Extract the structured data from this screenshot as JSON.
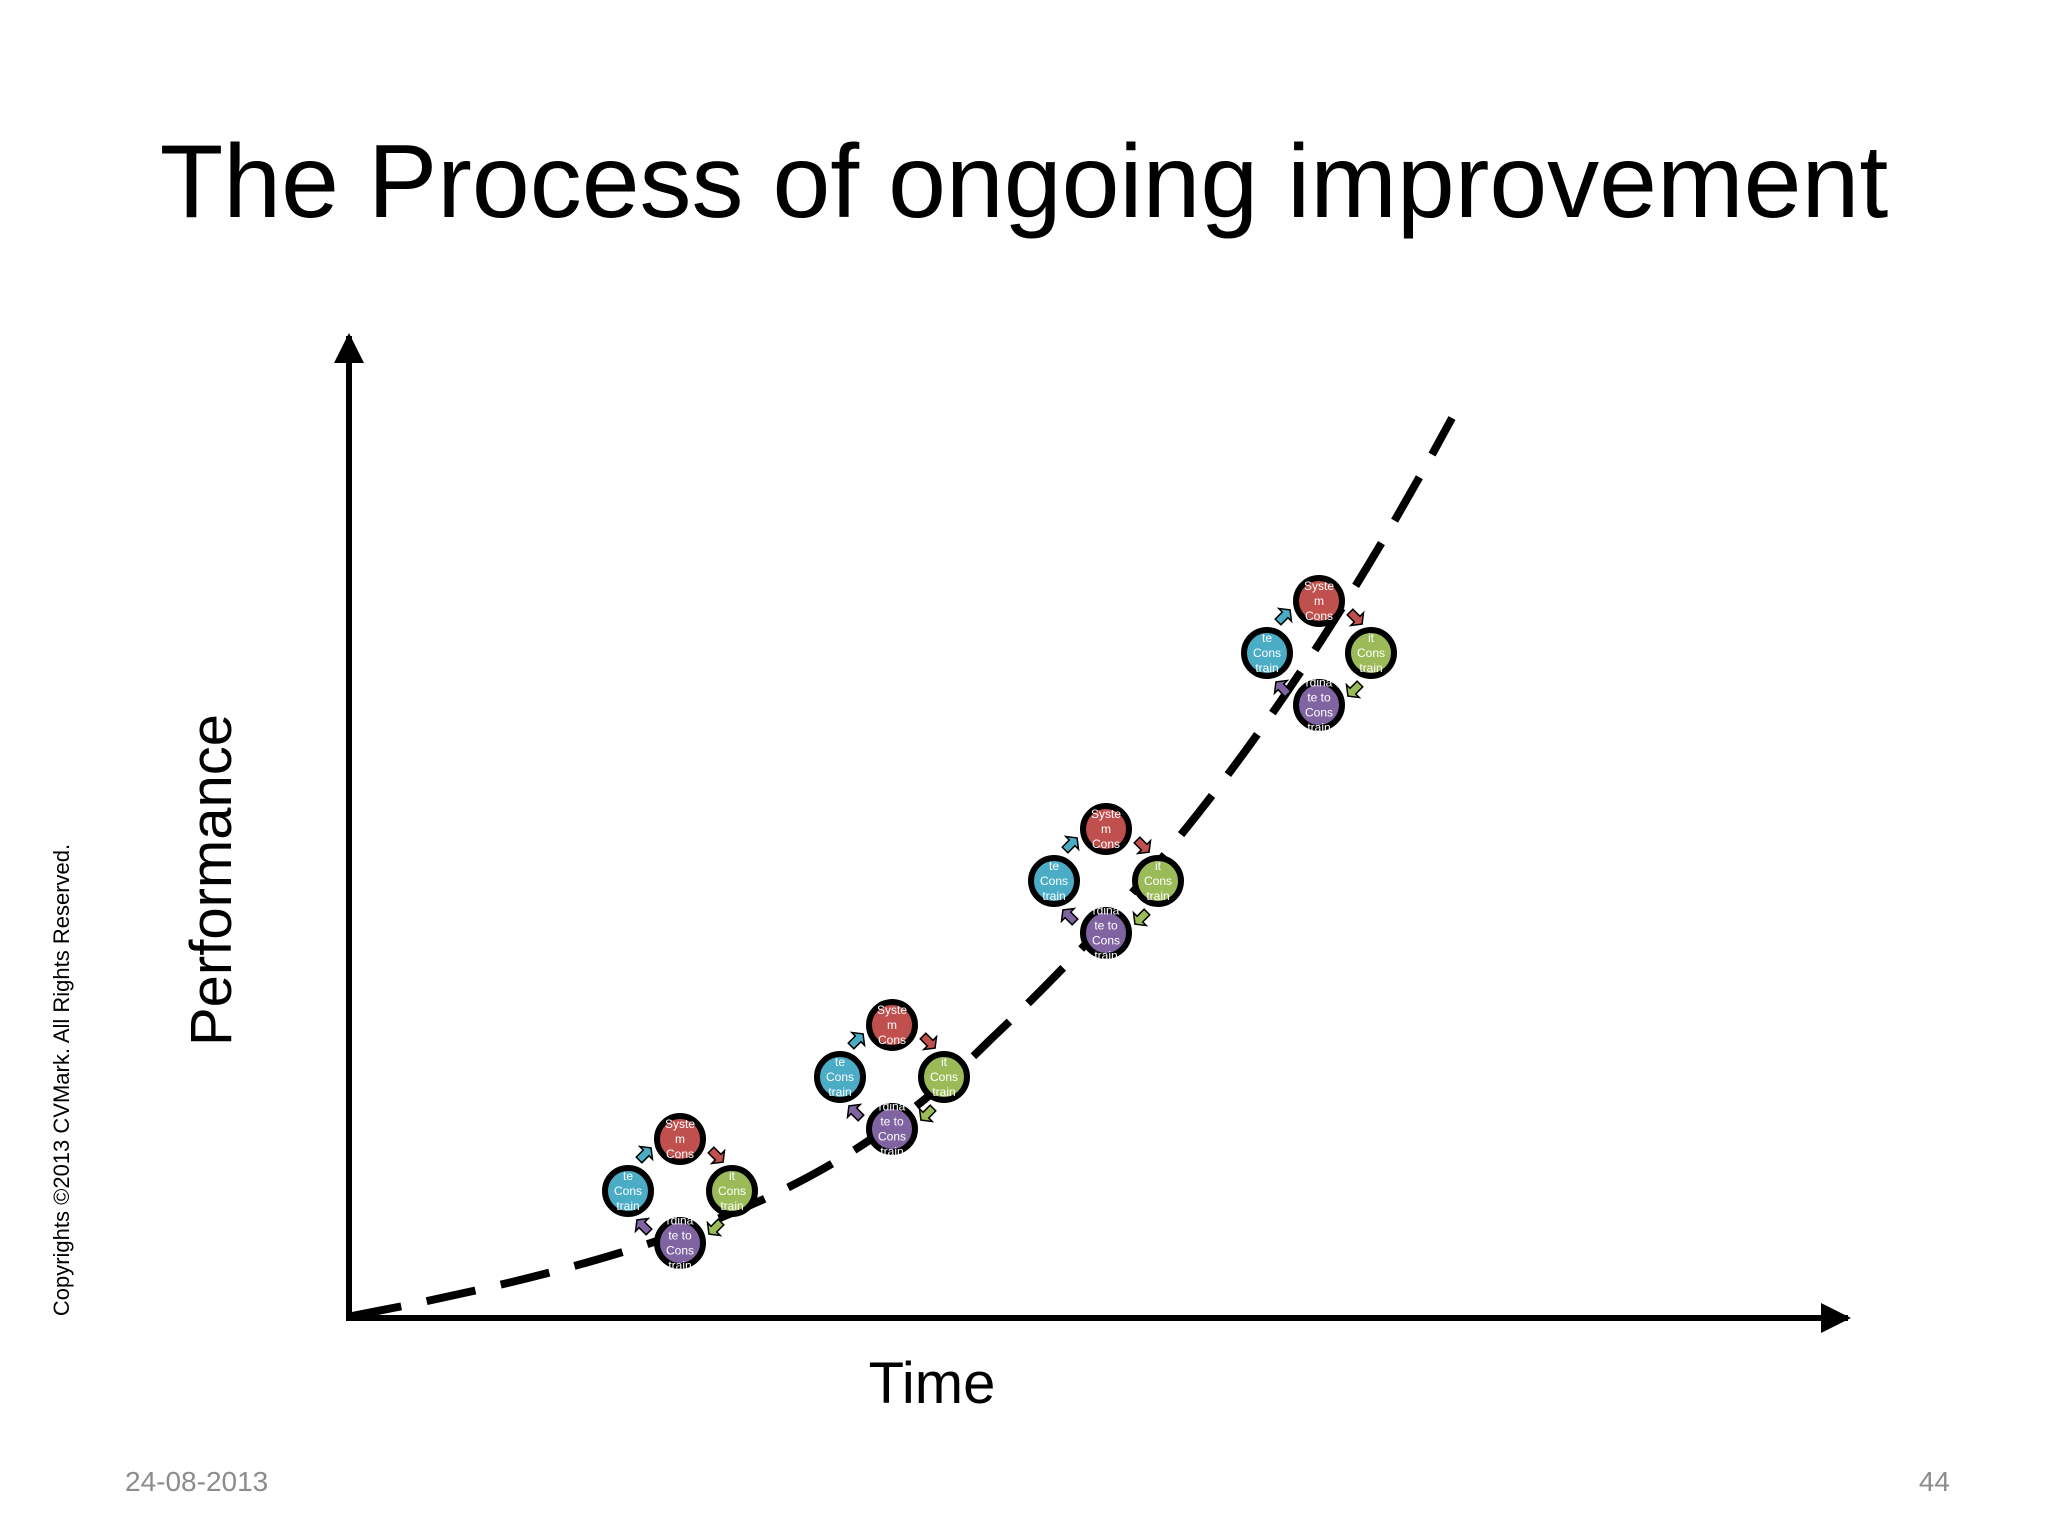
{
  "slide": {
    "title": "The Process of ongoing improvement",
    "y_axis_label": "Performance",
    "x_axis_label": "Time",
    "copyright": "Copyrights  ©2013 CVMark. All Rights Reserved.",
    "date": "24-08-2013",
    "page_number": "44"
  },
  "colors": {
    "identify": "#c0504d",
    "exploit": "#9bbb59",
    "subordinate": "#8064a2",
    "elevate": "#4bacc6",
    "stroke": "#000000"
  },
  "cycle_nodes": [
    {
      "key": "identify",
      "name": "identify-node",
      "lines": [
        "Syste",
        "m",
        "Cons"
      ]
    },
    {
      "key": "exploit",
      "name": "exploit-node",
      "lines": [
        "it",
        "Cons",
        "train"
      ]
    },
    {
      "key": "subordinate",
      "name": "subordinate-node",
      "lines": [
        "rdina",
        "te to",
        "Cons",
        "train"
      ]
    },
    {
      "key": "elevate",
      "name": "elevate-node",
      "lines": [
        "te",
        "Cons",
        "train"
      ]
    }
  ],
  "cycles_count": 4
}
